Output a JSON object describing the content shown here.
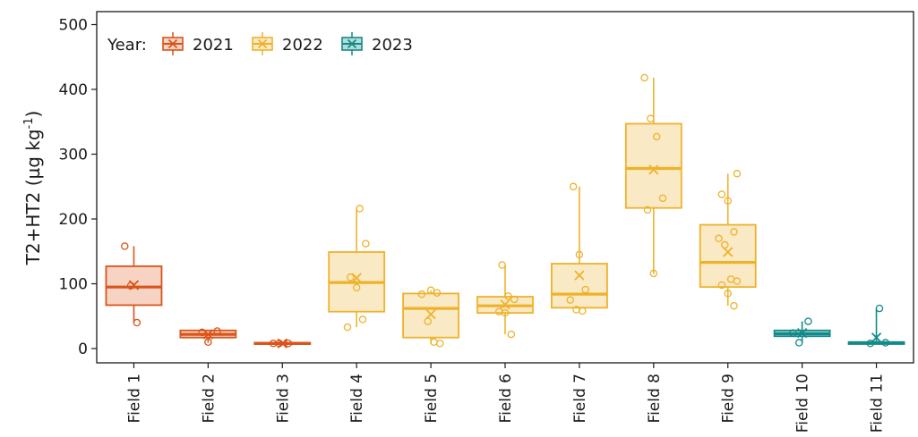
{
  "chart_data": {
    "type": "box",
    "title": "",
    "xlabel": "",
    "ylabel_main": "T2+HT2 (µg kg",
    "ylabel_sup": "-1",
    "ylabel_end": ")",
    "ylim": [
      -22,
      520
    ],
    "yticks": [
      0,
      100,
      200,
      300,
      400,
      500
    ],
    "legend": {
      "title": "Year:",
      "position": "top-left",
      "entries": [
        {
          "key": "2021",
          "label": "2021",
          "color": "#d9541a",
          "fill": "#f6d3c2"
        },
        {
          "key": "2022",
          "label": "2022",
          "color": "#eeb22a",
          "fill": "#fae9c5"
        },
        {
          "key": "2023",
          "label": "2023",
          "color": "#138a8a",
          "fill": "#b6dada"
        }
      ]
    },
    "categories": [
      "Field 1",
      "Field 2",
      "Field 3",
      "Field 4",
      "Field 5",
      "Field 6",
      "Field 7",
      "Field 8",
      "Field 9",
      "Field 10",
      "Field 11"
    ],
    "boxes": [
      {
        "field": "Field 1",
        "year": "2021",
        "whisker_low": 40,
        "q1": 67,
        "median": 95,
        "q3": 127,
        "whisker_high": 158,
        "mean": 98,
        "points": [
          158,
          97,
          40
        ]
      },
      {
        "field": "Field 2",
        "year": "2021",
        "whisker_low": 9,
        "q1": 17,
        "median": 22,
        "q3": 28,
        "whisker_high": 28,
        "mean": 22,
        "points": [
          27,
          25,
          10
        ]
      },
      {
        "field": "Field 3",
        "year": "2021",
        "whisker_low": 7,
        "q1": 7,
        "median": 8,
        "q3": 9,
        "whisker_high": 9,
        "mean": 8,
        "points": [
          8,
          8,
          8
        ]
      },
      {
        "field": "Field 4",
        "year": "2022",
        "whisker_low": 33,
        "q1": 57,
        "median": 102,
        "q3": 149,
        "whisker_high": 216,
        "mean": 109,
        "points": [
          216,
          162,
          110,
          94,
          45,
          33
        ]
      },
      {
        "field": "Field 5",
        "year": "2022",
        "whisker_low": 8,
        "q1": 17,
        "median": 62,
        "q3": 85,
        "whisker_high": 90,
        "mean": 53,
        "points": [
          90,
          86,
          84,
          42,
          10,
          8
        ]
      },
      {
        "field": "Field 6",
        "year": "2022",
        "whisker_low": 22,
        "q1": 55,
        "median": 66,
        "q3": 80,
        "whisker_high": 129,
        "mean": 68,
        "points": [
          129,
          81,
          76,
          57,
          55,
          22
        ]
      },
      {
        "field": "Field 7",
        "year": "2022",
        "whisker_low": 58,
        "q1": 63,
        "median": 84,
        "q3": 131,
        "whisker_high": 250,
        "mean": 113,
        "points": [
          250,
          145,
          91,
          75,
          60,
          58
        ]
      },
      {
        "field": "Field 8",
        "year": "2022",
        "whisker_low": 115,
        "q1": 217,
        "median": 278,
        "q3": 347,
        "whisker_high": 418,
        "mean": 276,
        "points": [
          418,
          355,
          327,
          232,
          214,
          116
        ]
      },
      {
        "field": "Field 9",
        "year": "2022",
        "whisker_low": 66,
        "q1": 95,
        "median": 133,
        "q3": 191,
        "whisker_high": 270,
        "mean": 149,
        "points": [
          270,
          238,
          228,
          180,
          170,
          160,
          107,
          104,
          98,
          85,
          66
        ]
      },
      {
        "field": "Field 10",
        "year": "2023",
        "whisker_low": 9,
        "q1": 19,
        "median": 23,
        "q3": 28,
        "whisker_high": 42,
        "mean": 24,
        "points": [
          42,
          24,
          9
        ]
      },
      {
        "field": "Field 11",
        "year": "2023",
        "whisker_low": 7,
        "q1": 7,
        "median": 9,
        "q3": 10,
        "whisker_high": 62,
        "mean": 17,
        "points": [
          62,
          9,
          8
        ]
      }
    ]
  }
}
